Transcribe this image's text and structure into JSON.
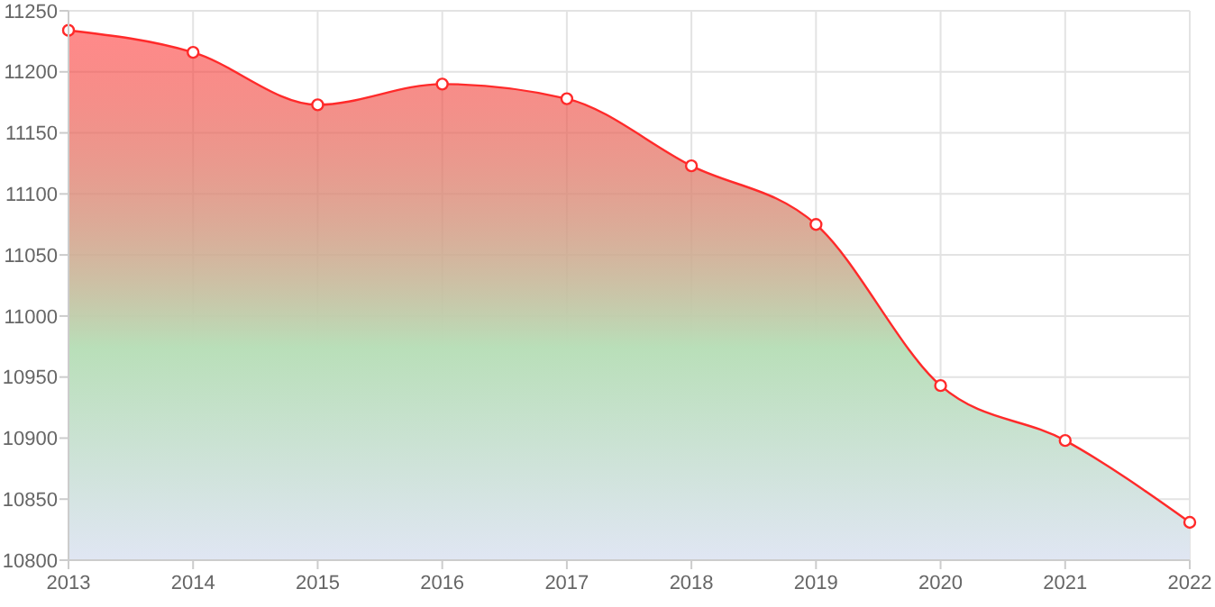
{
  "chart_data": {
    "type": "area",
    "x": [
      2013,
      2014,
      2015,
      2016,
      2017,
      2018,
      2019,
      2020,
      2021,
      2022
    ],
    "series": [
      {
        "color": "#ff2a2a",
        "values": [
          11234,
          11216,
          11173,
          11190,
          11178,
          11123,
          11075,
          10943,
          10898,
          10831
        ]
      }
    ],
    "xlim": [
      2013,
      2022
    ],
    "xticks": [
      2013,
      2014,
      2015,
      2016,
      2017,
      2018,
      2019,
      2020,
      2021,
      2022
    ],
    "ylim": [
      10800,
      11250
    ],
    "yticks": [
      10800,
      10850,
      10900,
      10950,
      11000,
      11050,
      11100,
      11150,
      11200,
      11250
    ],
    "grid": true,
    "marker": "circle",
    "line_style": "solid"
  }
}
